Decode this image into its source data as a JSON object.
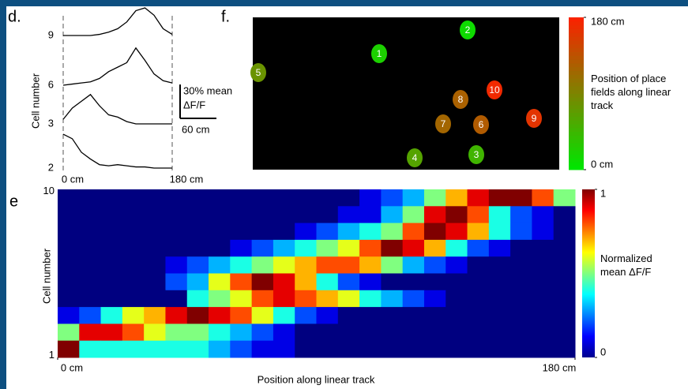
{
  "chart_data": [
    {
      "type": "line",
      "panel_label": "d.",
      "ylabel": "Cell number",
      "x": [
        0,
        15,
        30,
        45,
        60,
        75,
        90,
        105,
        120,
        135,
        150,
        165,
        180
      ],
      "xlim": [
        0,
        180
      ],
      "xticks": [
        {
          "value": 0,
          "label": "0 cm"
        },
        {
          "value": 180,
          "label": "180 cm"
        }
      ],
      "series": [
        {
          "name": "9",
          "color": "#000000",
          "values": [
            0,
            0,
            0,
            0,
            1,
            3,
            6,
            12,
            22,
            34,
            18,
            6,
            1
          ]
        },
        {
          "name": "6",
          "color": "#000000",
          "values": [
            0,
            1,
            2,
            3,
            6,
            12,
            16,
            20,
            33,
            22,
            10,
            4,
            2
          ]
        },
        {
          "name": "3",
          "color": "#000000",
          "values": [
            4,
            14,
            20,
            26,
            16,
            8,
            6,
            2,
            0,
            0,
            0,
            0,
            0
          ]
        },
        {
          "name": "2",
          "color": "#000000",
          "values": [
            30,
            26,
            14,
            8,
            3,
            2,
            3,
            2,
            1,
            1,
            0,
            0,
            0
          ]
        }
      ],
      "scale_bar": {
        "y_value": 30,
        "y_label": "30% mean",
        "y_unit": "ΔF/F",
        "x_value": 60,
        "x_label": "60 cm"
      }
    },
    {
      "type": "map",
      "panel_label": "f.",
      "cells": [
        "1",
        "2",
        "3",
        "4",
        "5",
        "6",
        "7",
        "8",
        "9",
        "10"
      ],
      "values": [
        20,
        10,
        45,
        60,
        75,
        125,
        115,
        120,
        160,
        170
      ],
      "zlim": [
        0,
        180
      ],
      "zticks": [
        {
          "value": 180,
          "label": "180 cm"
        },
        {
          "value": 0,
          "label": "0 cm"
        }
      ],
      "colorbar_label": "Position of place fields along linear track",
      "colors": [
        "#00e600",
        "#ff1e00"
      ]
    },
    {
      "type": "heatmap",
      "panel_label": "e",
      "ylabel": "Cell number",
      "xlabel": "Position along linear track",
      "categories": [
        "10",
        null,
        null,
        null,
        null,
        null,
        null,
        null,
        null,
        "1"
      ],
      "xlim": [
        0,
        180
      ],
      "xticks": [
        {
          "value": 0,
          "label": "0 cm"
        },
        {
          "value": 180,
          "label": "180 cm"
        }
      ],
      "values": [
        [
          0,
          0,
          0,
          0,
          0,
          0,
          0,
          0,
          0,
          0,
          0,
          0,
          0,
          0,
          0.1,
          0.2,
          0.3,
          0.5,
          0.7,
          0.9,
          1,
          1,
          0.8,
          0.5
        ],
        [
          0,
          0,
          0,
          0,
          0,
          0,
          0,
          0,
          0,
          0,
          0,
          0,
          0,
          0.1,
          0.1,
          0.3,
          0.5,
          0.9,
          1,
          0.8,
          0.4,
          0.2,
          0.1,
          0
        ],
        [
          0,
          0,
          0,
          0,
          0,
          0,
          0,
          0,
          0,
          0,
          0,
          0.1,
          0.2,
          0.3,
          0.4,
          0.5,
          0.8,
          1,
          0.9,
          0.7,
          0.4,
          0.2,
          0.1,
          0
        ],
        [
          0,
          0,
          0,
          0,
          0,
          0,
          0,
          0,
          0.1,
          0.2,
          0.3,
          0.4,
          0.5,
          0.6,
          0.8,
          1,
          0.9,
          0.7,
          0.4,
          0.2,
          0.1,
          0,
          0,
          0
        ],
        [
          0,
          0,
          0,
          0,
          0,
          0.1,
          0.2,
          0.3,
          0.4,
          0.5,
          0.6,
          0.7,
          0.8,
          0.8,
          0.7,
          0.5,
          0.3,
          0.2,
          0.1,
          0,
          0,
          0,
          0,
          0
        ],
        [
          0,
          0,
          0,
          0,
          0,
          0.2,
          0.3,
          0.6,
          0.8,
          1,
          0.9,
          0.7,
          0.4,
          0.2,
          0.1,
          0,
          0,
          0,
          0,
          0,
          0,
          0,
          0,
          0
        ],
        [
          0,
          0,
          0,
          0,
          0,
          0,
          0.4,
          0.5,
          0.6,
          0.8,
          0.9,
          0.8,
          0.7,
          0.6,
          0.4,
          0.3,
          0.2,
          0.1,
          0,
          0,
          0,
          0,
          0,
          0
        ],
        [
          0.1,
          0.2,
          0.4,
          0.6,
          0.7,
          0.9,
          1,
          0.9,
          0.8,
          0.6,
          0.4,
          0.2,
          0.1,
          0,
          0,
          0,
          0,
          0,
          0,
          0,
          0,
          0,
          0,
          0
        ],
        [
          0.5,
          0.9,
          0.9,
          0.8,
          0.6,
          0.5,
          0.5,
          0.4,
          0.3,
          0.2,
          0.1,
          0,
          0,
          0,
          0,
          0,
          0,
          0,
          0,
          0,
          0,
          0,
          0,
          0
        ],
        [
          1,
          0.4,
          0.4,
          0.4,
          0.4,
          0.4,
          0.4,
          0.3,
          0.2,
          0.1,
          0.1,
          0,
          0,
          0,
          0,
          0,
          0,
          0,
          0,
          0,
          0,
          0,
          0,
          0
        ]
      ],
      "zlim": [
        0,
        1
      ],
      "zticks": [
        0,
        1
      ],
      "colorbar_label": "Normalized mean ΔF/F"
    }
  ]
}
